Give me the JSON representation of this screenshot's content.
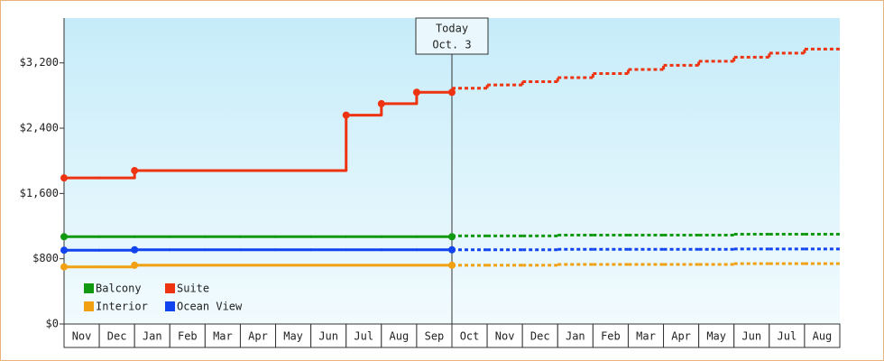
{
  "chart_data": {
    "type": "step-line",
    "categories": [
      "Nov",
      "Dec",
      "Jan",
      "Feb",
      "Mar",
      "Apr",
      "May",
      "Jun",
      "Jul",
      "Aug",
      "Sep",
      "Oct",
      "Nov",
      "Dec",
      "Jan",
      "Feb",
      "Mar",
      "Apr",
      "May",
      "Jun",
      "Jul",
      "Aug"
    ],
    "ylim": [
      0,
      3750
    ],
    "yticks": [
      {
        "value": 0,
        "label": "$0"
      },
      {
        "value": 800,
        "label": "$800"
      },
      {
        "value": 1600,
        "label": "$1,600"
      },
      {
        "value": 2400,
        "label": "$2,400"
      },
      {
        "value": 3200,
        "label": "$3,200"
      }
    ],
    "annotation": [
      "Today",
      "Oct. 3"
    ],
    "series": [
      {
        "name": "Balcony",
        "color": "#119911",
        "values": [
          1070,
          1070,
          1070,
          1070,
          1070,
          1070,
          1070,
          1070,
          1070,
          1070,
          1070,
          null,
          null,
          null,
          null,
          null,
          null,
          null,
          null,
          null,
          null,
          null
        ],
        "projected": [
          null,
          null,
          null,
          null,
          null,
          null,
          null,
          null,
          null,
          null,
          null,
          1080,
          1080,
          1080,
          1090,
          1090,
          1090,
          1090,
          1090,
          1100,
          1100,
          1100
        ]
      },
      {
        "name": "Suite",
        "color": "#ee3311",
        "values": [
          1790,
          1790,
          1880,
          1880,
          1880,
          1880,
          1880,
          1880,
          2560,
          2700,
          2840,
          null,
          null,
          null,
          null,
          null,
          null,
          null,
          null,
          null,
          null,
          null
        ],
        "projected": [
          null,
          null,
          null,
          null,
          null,
          null,
          null,
          null,
          null,
          null,
          null,
          2890,
          2930,
          2970,
          3020,
          3070,
          3120,
          3170,
          3220,
          3270,
          3320,
          3370
        ]
      },
      {
        "name": "Interior",
        "color": "#f0a010",
        "values": [
          700,
          700,
          720,
          720,
          720,
          720,
          720,
          720,
          720,
          720,
          720,
          null,
          null,
          null,
          null,
          null,
          null,
          null,
          null,
          null,
          null,
          null
        ],
        "projected": [
          null,
          null,
          null,
          null,
          null,
          null,
          null,
          null,
          null,
          null,
          null,
          720,
          720,
          720,
          730,
          730,
          730,
          730,
          730,
          740,
          740,
          740
        ]
      },
      {
        "name": "Ocean View",
        "color": "#1144ee",
        "values": [
          905,
          905,
          910,
          910,
          910,
          910,
          910,
          910,
          910,
          910,
          910,
          null,
          null,
          null,
          null,
          null,
          null,
          null,
          null,
          null,
          null,
          null
        ],
        "projected": [
          null,
          null,
          null,
          null,
          null,
          null,
          null,
          null,
          null,
          null,
          null,
          910,
          910,
          910,
          915,
          915,
          915,
          915,
          915,
          920,
          920,
          920
        ]
      }
    ]
  }
}
